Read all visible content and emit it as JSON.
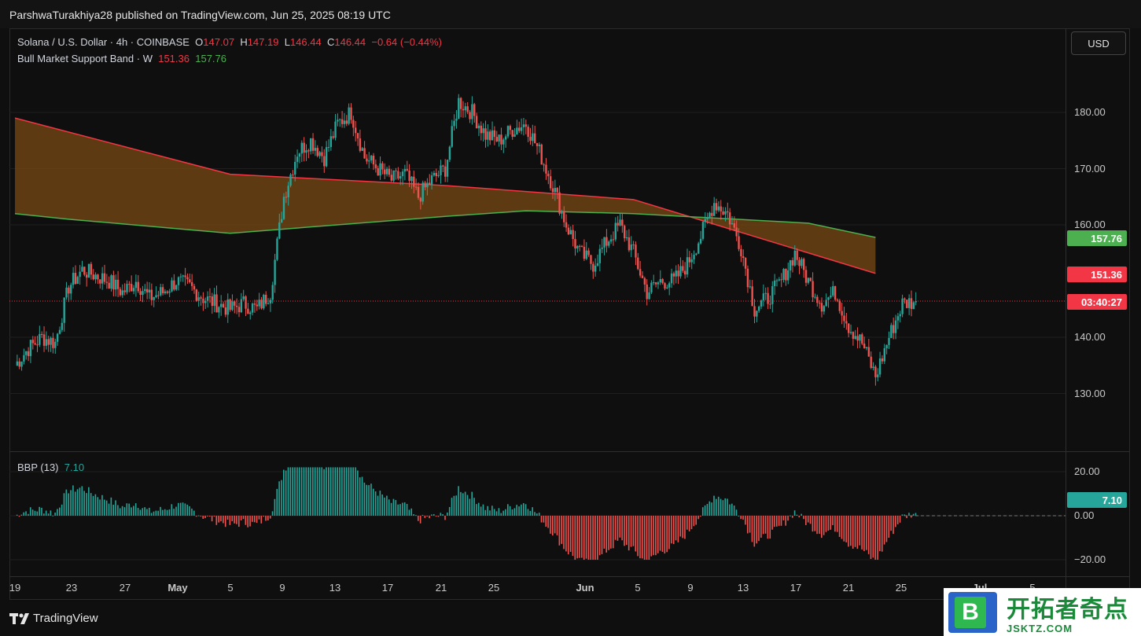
{
  "header": {
    "publisher": "ParshwaTurakhiya28 published on TradingView.com, Jun 25, 2025 08:19 UTC"
  },
  "legend": {
    "symbol": "Solana / U.S. Dollar · 4h · COINBASE",
    "o_label": "O",
    "o": "147.07",
    "h_label": "H",
    "h": "147.19",
    "l_label": "L",
    "l": "146.44",
    "c_label": "C",
    "c": "146.44",
    "change": "−0.64 (−0.44%)",
    "indicator": "Bull Market Support Band · W",
    "band_sma": "151.36",
    "band_ema": "157.76",
    "osc": "BBP (13)",
    "osc_value": "7.10"
  },
  "currency_button": "USD",
  "badges": {
    "ema": "157.76",
    "sma": "151.36",
    "countdown": "03:40:27",
    "osc": "7.10"
  },
  "colors": {
    "up": "#26a69a",
    "down": "#ef5350",
    "band_fill": "#7a4a14",
    "sma_line": "#f23645",
    "ema_line": "#4caf50"
  },
  "chart_data": [
    {
      "type": "candlestick",
      "title": "Solana / U.S. Dollar · 4h · COINBASE",
      "y_ticks": [
        "180.00",
        "170.00",
        "160.00",
        "140.00",
        "130.00"
      ],
      "ylim": [
        120,
        192
      ],
      "x_ticks": [
        "19",
        "23",
        "27",
        "May",
        "5",
        "9",
        "13",
        "17",
        "21",
        "25",
        "Jun",
        "5",
        "9",
        "13",
        "17",
        "21",
        "25",
        "Jul",
        "5"
      ],
      "close_path": [
        [
          "Apr 19",
          135
        ],
        [
          "Apr 20",
          138
        ],
        [
          "Apr 21",
          140
        ],
        [
          "Apr 22",
          139
        ],
        [
          "Apr 23",
          149
        ],
        [
          "Apr 24",
          152
        ],
        [
          "Apr 25",
          151
        ],
        [
          "Apr 26",
          150
        ],
        [
          "Apr 27",
          148
        ],
        [
          "Apr 28",
          150
        ],
        [
          "Apr 29",
          147
        ],
        [
          "Apr 30",
          148
        ],
        [
          "May 1",
          150
        ],
        [
          "May 2",
          149
        ],
        [
          "May 3",
          147
        ],
        [
          "May 4",
          146
        ],
        [
          "May 5",
          145
        ],
        [
          "May 6",
          146
        ],
        [
          "May 7",
          145
        ],
        [
          "May 8",
          148
        ],
        [
          "May 9",
          165
        ],
        [
          "May 10",
          173
        ],
        [
          "May 11",
          175
        ],
        [
          "May 12",
          172
        ],
        [
          "May 13",
          178
        ],
        [
          "May 14",
          180
        ],
        [
          "May 15",
          172
        ],
        [
          "May 16",
          170
        ],
        [
          "May 17",
          168
        ],
        [
          "May 18",
          169
        ],
        [
          "May 19",
          165
        ],
        [
          "May 20",
          168
        ],
        [
          "May 21",
          170
        ],
        [
          "May 22",
          182
        ],
        [
          "May 23",
          180
        ],
        [
          "May 24",
          176
        ],
        [
          "May 25",
          175
        ],
        [
          "May 26",
          177
        ],
        [
          "May 27",
          178
        ],
        [
          "May 28",
          173
        ],
        [
          "May 29",
          167
        ],
        [
          "May 30",
          160
        ],
        [
          "May 31",
          155
        ],
        [
          "Jun 1",
          153
        ],
        [
          "Jun 2",
          157
        ],
        [
          "Jun 3",
          160
        ],
        [
          "Jun 4",
          155
        ],
        [
          "Jun 5",
          148
        ],
        [
          "Jun 6",
          150
        ],
        [
          "Jun 7",
          150
        ],
        [
          "Jun 8",
          153
        ],
        [
          "Jun 9",
          158
        ],
        [
          "Jun 10",
          164
        ],
        [
          "Jun 11",
          162
        ],
        [
          "Jun 12",
          156
        ],
        [
          "Jun 13",
          145
        ],
        [
          "Jun 14",
          147
        ],
        [
          "Jun 15",
          150
        ],
        [
          "Jun 16",
          155
        ],
        [
          "Jun 17",
          150
        ],
        [
          "Jun 18",
          146
        ],
        [
          "Jun 19",
          148
        ],
        [
          "Jun 20",
          142
        ],
        [
          "Jun 21",
          139
        ],
        [
          "Jun 22",
          133
        ],
        [
          "Jun 23",
          140
        ],
        [
          "Jun 24",
          146
        ],
        [
          "Jun 25",
          146.44
        ]
      ],
      "series": [
        {
          "name": "151.36",
          "color": "#f23645",
          "points": [
            [
              "Apr 19",
              179
            ],
            [
              "May 5",
              169
            ],
            [
              "May 21",
              167
            ],
            [
              "Jun 4",
              164.5
            ],
            [
              "Jun 22",
              151.36
            ]
          ]
        },
        {
          "name": "157.76",
          "color": "#4caf50",
          "points": [
            [
              "Apr 19",
              162
            ],
            [
              "Apr 23",
              161
            ],
            [
              "May 5",
              158.5
            ],
            [
              "May 21",
              161.5
            ],
            [
              "May 27",
              162.5
            ],
            [
              "Jun 4",
              162
            ],
            [
              "Jun 17",
              160.3
            ],
            [
              "Jun 22",
              157.76
            ]
          ]
        }
      ],
      "last_price": 146.44
    },
    {
      "type": "bar",
      "title": "BBP (13)",
      "y_ticks": [
        "20.00",
        "0.00",
        "−20.00"
      ],
      "ylim": [
        -22,
        24
      ],
      "last_value": 7.1
    }
  ]
}
